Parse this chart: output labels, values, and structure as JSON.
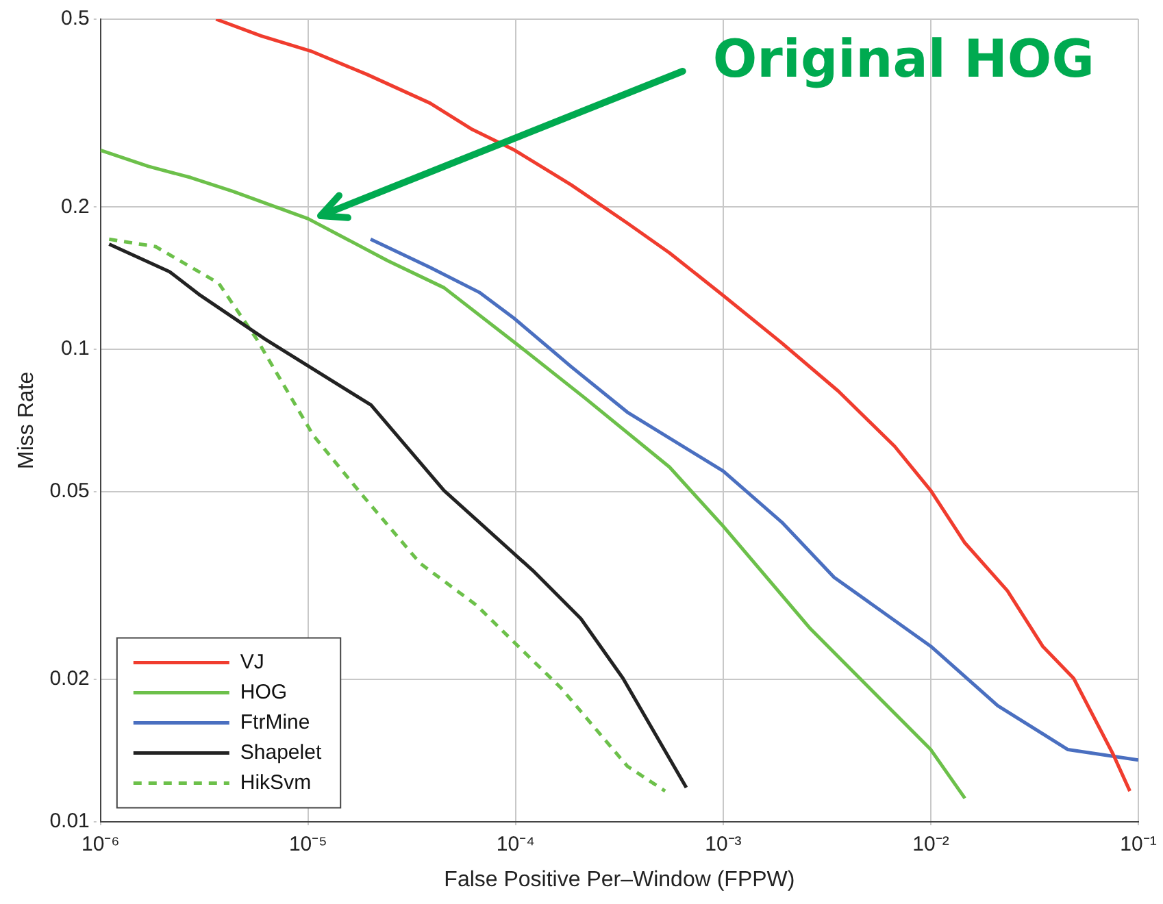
{
  "chart_data": {
    "type": "line",
    "xlabel": "False Positive Per–Window (FPPW)",
    "ylabel": "Miss Rate",
    "log": "xy",
    "grid": true,
    "legend": "bottom left",
    "marker": "none",
    "xlim": [
      1e-06,
      0.1
    ],
    "ylim": [
      0.01,
      0.5
    ],
    "xticks": [
      {
        "value": 1e-06,
        "label": "10⁻⁶"
      },
      {
        "value": 1e-05,
        "label": "10⁻⁵"
      },
      {
        "value": 0.0001,
        "label": "10⁻⁴"
      },
      {
        "value": 0.001,
        "label": "10⁻³"
      },
      {
        "value": 0.01,
        "label": "10⁻²"
      },
      {
        "value": 0.1,
        "label": "10⁻¹"
      }
    ],
    "yticks": [
      0.01,
      0.02,
      0.05,
      0.1,
      0.2,
      0.5
    ],
    "annotations": [
      "Original HOG"
    ],
    "series": [
      {
        "name": "VJ",
        "color": "#f03c2e",
        "x": [
          3.6e-06,
          5.93e-06,
          1.03e-05,
          1.92e-05,
          3.87e-05,
          6.18e-05,
          9.88e-05,
          0.000185,
          0.000345,
          0.000551,
          0.001,
          0.00192,
          0.00359,
          0.0067,
          0.01,
          0.0146,
          0.0234,
          0.0346,
          0.0488,
          0.0755,
          0.091
        ],
        "values": [
          0.5,
          0.461,
          0.428,
          0.382,
          0.332,
          0.292,
          0.264,
          0.223,
          0.185,
          0.16,
          0.13,
          0.103,
          0.0815,
          0.0623,
          0.0502,
          0.0389,
          0.0308,
          0.0235,
          0.0201,
          0.0139,
          0.0116
        ]
      },
      {
        "name": "HOG",
        "color": "#6cc04a",
        "x": [
          1e-06,
          1.7e-06,
          2.72e-06,
          4.34e-06,
          1e-05,
          2.42e-05,
          4.52e-05,
          0.0001,
          0.000216,
          0.000551,
          0.001,
          0.00263,
          0.01,
          0.0146
        ],
        "values": [
          0.264,
          0.244,
          0.231,
          0.216,
          0.189,
          0.154,
          0.135,
          0.103,
          0.0788,
          0.0563,
          0.0422,
          0.0256,
          0.0142,
          0.0112
        ]
      },
      {
        "name": "FtrMine",
        "color": "#4a6fc0",
        "x": [
          2e-05,
          3.87e-05,
          6.68e-05,
          9.9e-05,
          0.000185,
          0.000345,
          0.001,
          0.00192,
          0.00342,
          0.01,
          0.021,
          0.0458,
          0.1
        ],
        "values": [
          0.171,
          0.149,
          0.132,
          0.116,
          0.0919,
          0.0736,
          0.0552,
          0.043,
          0.0329,
          0.0235,
          0.0176,
          0.0142,
          0.0135
        ]
      },
      {
        "name": "Shapelet",
        "color": "#222222",
        "x": [
          1.1e-06,
          2.15e-06,
          3.03e-06,
          6.22e-06,
          2.01e-05,
          4.52e-05,
          0.000121,
          0.000206,
          0.000329,
          0.000664
        ],
        "values": [
          0.167,
          0.146,
          0.13,
          0.105,
          0.0762,
          0.0502,
          0.034,
          0.0269,
          0.0201,
          0.0118
        ]
      },
      {
        "name": "HikSvm",
        "color": "#6cc04a",
        "line_style": "dashed",
        "x": [
          1.1e-06,
          1.84e-06,
          3.71e-06,
          5.66e-06,
          1.06e-05,
          1.77e-05,
          3.47e-05,
          6.48e-05,
          0.000115,
          0.000165,
          0.000345,
          0.000525
        ],
        "values": [
          0.171,
          0.165,
          0.138,
          0.105,
          0.0657,
          0.0499,
          0.0352,
          0.0287,
          0.0224,
          0.0192,
          0.0131,
          0.0116
        ]
      }
    ]
  }
}
